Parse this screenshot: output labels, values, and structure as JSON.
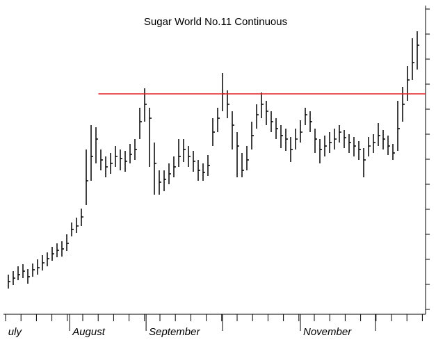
{
  "chart_data": {
    "type": "ohlc",
    "title": "Sugar World No.11 Continuous",
    "color": "#000000",
    "close": [
      40,
      45,
      50,
      55,
      47,
      57,
      60,
      67,
      73,
      80,
      85,
      87,
      95,
      115,
      120,
      133,
      185,
      220,
      245,
      215,
      205,
      210,
      220,
      217,
      213,
      223,
      230,
      270,
      295,
      275,
      210,
      183,
      187,
      195,
      205,
      220,
      230,
      220,
      213,
      200,
      197,
      207,
      255,
      275,
      310,
      295,
      265,
      235,
      200,
      215,
      250,
      280,
      295,
      285,
      270,
      260,
      250,
      245,
      230,
      245,
      255,
      280,
      270,
      245,
      230,
      235,
      240,
      245,
      255,
      247,
      240,
      235,
      230,
      215,
      235,
      240,
      250,
      245,
      235,
      225,
      260,
      295,
      330,
      355,
      380
    ],
    "high": [
      50,
      55,
      62,
      65,
      58,
      66,
      72,
      78,
      82,
      90,
      95,
      98,
      108,
      125,
      132,
      145,
      230,
      265,
      262,
      230,
      220,
      225,
      235,
      230,
      228,
      238,
      245,
      290,
      318,
      290,
      240,
      200,
      200,
      210,
      220,
      245,
      245,
      235,
      228,
      215,
      210,
      222,
      275,
      290,
      340,
      315,
      285,
      255,
      225,
      235,
      270,
      295,
      312,
      300,
      285,
      275,
      265,
      260,
      248,
      260,
      272,
      290,
      285,
      260,
      245,
      250,
      255,
      260,
      265,
      258,
      252,
      248,
      242,
      232,
      248,
      252,
      268,
      258,
      250,
      238,
      300,
      320,
      350,
      390,
      400
    ],
    "low": [
      30,
      35,
      42,
      45,
      37,
      47,
      50,
      56,
      62,
      70,
      75,
      76,
      84,
      105,
      110,
      120,
      150,
      185,
      210,
      200,
      190,
      195,
      205,
      200,
      198,
      210,
      215,
      245,
      270,
      205,
      165,
      165,
      170,
      180,
      190,
      205,
      212,
      205,
      198,
      185,
      185,
      192,
      235,
      255,
      285,
      275,
      230,
      190,
      190,
      200,
      230,
      260,
      275,
      265,
      255,
      245,
      232,
      228,
      212,
      230,
      240,
      265,
      255,
      225,
      210,
      220,
      225,
      230,
      240,
      232,
      225,
      220,
      215,
      190,
      220,
      225,
      235,
      230,
      222,
      215,
      228,
      270,
      300,
      330,
      345
    ],
    "ylim": [
      -5,
      435
    ],
    "yticks": [
      0,
      36,
      72,
      108,
      144,
      180,
      216,
      252,
      288,
      324,
      360,
      396,
      432
    ],
    "hline": {
      "value": 310,
      "from": 18.5,
      "color": "#e02020"
    },
    "xticks": [
      12.6,
      28.3,
      44,
      60,
      75.4
    ],
    "xlabels": [
      {
        "value": -0.6,
        "label": "uly"
      },
      {
        "value": 12.6,
        "label": "August"
      },
      {
        "value": 28.3,
        "label": "September"
      },
      {
        "value": 60,
        "label": "November"
      }
    ]
  }
}
